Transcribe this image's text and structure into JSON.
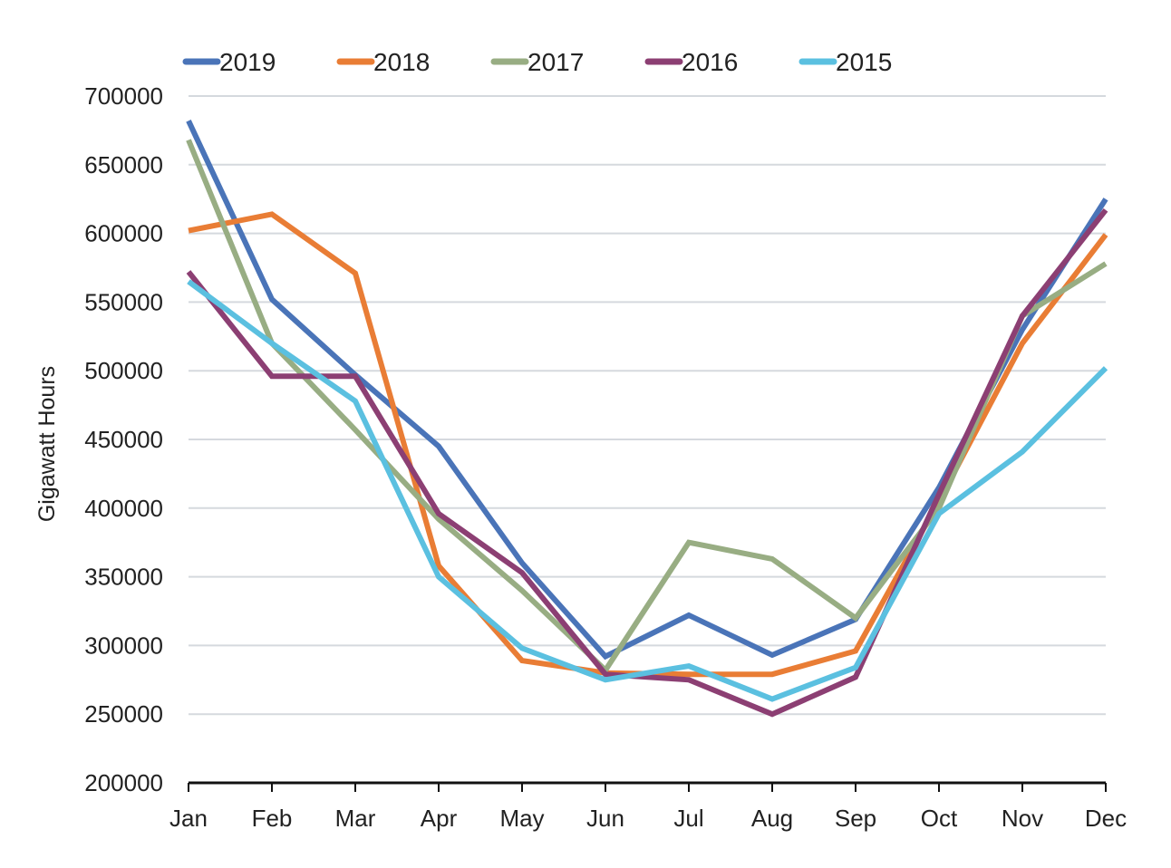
{
  "chart_data": {
    "type": "line",
    "title": "",
    "xlabel": "",
    "ylabel": "Gigawatt Hours",
    "ylim": [
      200000,
      700000
    ],
    "yticks": [
      200000,
      250000,
      300000,
      350000,
      400000,
      450000,
      500000,
      550000,
      600000,
      650000,
      700000
    ],
    "ytick_labels": [
      "200000",
      "250000",
      "300000",
      "350000",
      "400000",
      "450000",
      "500000",
      "550000",
      "600000",
      "650000",
      "700000"
    ],
    "grid": "horizontal",
    "legend_position": "top",
    "categories": [
      "Jan",
      "Feb",
      "Mar",
      "Apr",
      "May",
      "Jun",
      "Jul",
      "Aug",
      "Sep",
      "Oct",
      "Nov",
      "Dec"
    ],
    "series": [
      {
        "name": "2019",
        "color": "#4a74b8",
        "values": [
          682000,
          552000,
          497000,
          445000,
          360000,
          292000,
          322000,
          293000,
          319000,
          415000,
          530000,
          625000
        ]
      },
      {
        "name": "2018",
        "color": "#e97d35",
        "values": [
          602000,
          614000,
          571000,
          358000,
          289000,
          280000,
          279000,
          279000,
          296000,
          405000,
          520000,
          599000
        ]
      },
      {
        "name": "2017",
        "color": "#98ad83",
        "values": [
          668000,
          520000,
          457000,
          392000,
          340000,
          282000,
          375000,
          363000,
          320000,
          400000,
          540000,
          578000
        ]
      },
      {
        "name": "2016",
        "color": "#8c3f73",
        "values": [
          572000,
          496000,
          496000,
          396000,
          353000,
          279000,
          275000,
          250000,
          277000,
          410000,
          540000,
          617000
        ]
      },
      {
        "name": "2015",
        "color": "#5bc0e0",
        "values": [
          565000,
          520000,
          478000,
          350000,
          298000,
          275000,
          285000,
          261000,
          284000,
          396000,
          441000,
          502000
        ]
      }
    ]
  }
}
